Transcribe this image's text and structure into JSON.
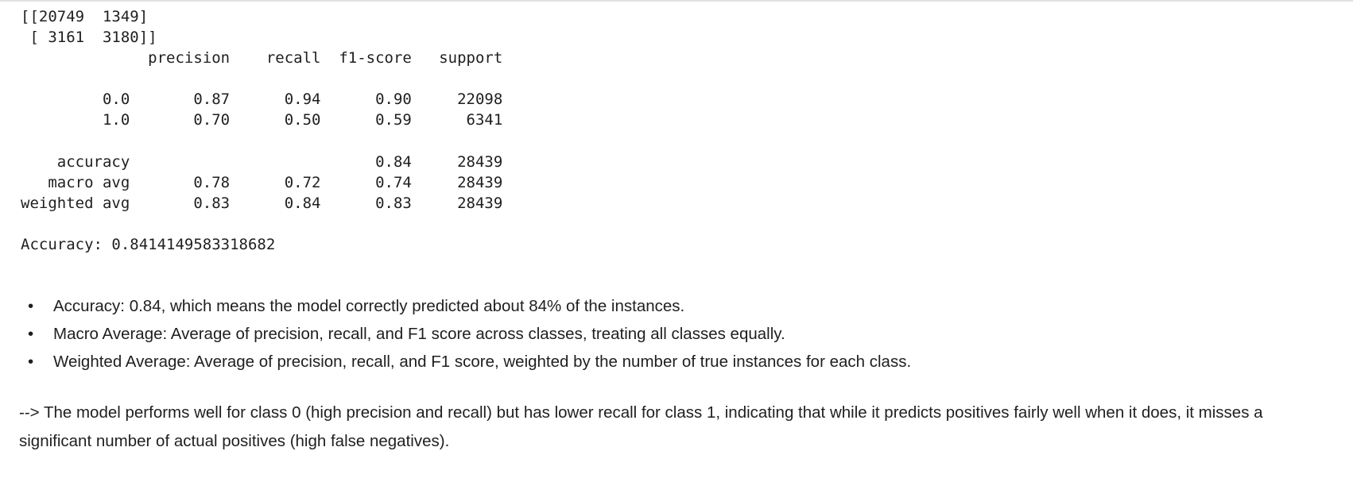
{
  "output": {
    "lines": [
      "[[20749  1349]",
      " [ 3161  3180]]",
      "              precision    recall  f1-score   support",
      "",
      "         0.0       0.87      0.94      0.90     22098",
      "         1.0       0.70      0.50      0.59      6341",
      "",
      "    accuracy                           0.84     28439",
      "   macro avg       0.78      0.72      0.74     28439",
      "weighted avg       0.83      0.84      0.83     28439",
      "",
      "Accuracy: 0.8414149583318682"
    ]
  },
  "notes": {
    "bullet_glyph": "•",
    "items": [
      "Accuracy: 0.84, which means the model correctly predicted about 84% of the instances.",
      "Macro Average: Average of precision, recall, and F1 score across classes, treating all classes equally.",
      "Weighted Average: Average of precision, recall, and F1 score, weighted by the number of true instances for each class."
    ]
  },
  "conclusion": "--> The model performs well for class 0 (high precision and recall) but has lower recall for class 1, indicating that while it predicts positives fairly well when it does, it misses a significant number of actual positives (high false negatives)."
}
